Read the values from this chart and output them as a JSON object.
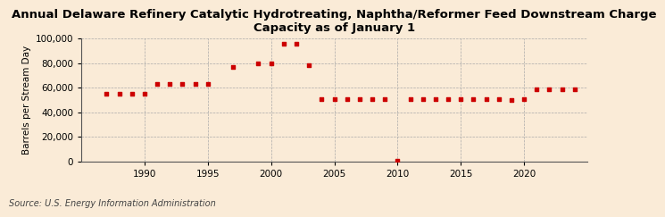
{
  "title": "Annual Delaware Refinery Catalytic Hydrotreating, Naphtha/Reformer Feed Downstream Charge\nCapacity as of January 1",
  "ylabel": "Barrels per Stream Day",
  "source": "Source: U.S. Energy Information Administration",
  "background_color": "#faebd7",
  "marker_color": "#cc0000",
  "years": [
    1987,
    1988,
    1989,
    1990,
    1991,
    1992,
    1993,
    1994,
    1995,
    1997,
    1999,
    2000,
    2001,
    2002,
    2003,
    2004,
    2005,
    2006,
    2007,
    2008,
    2009,
    2010,
    2011,
    2012,
    2013,
    2014,
    2015,
    2016,
    2017,
    2018,
    2019,
    2020,
    2021,
    2022,
    2023,
    2024
  ],
  "values": [
    55000,
    55000,
    55000,
    55000,
    63000,
    63000,
    63000,
    63000,
    63000,
    77000,
    80000,
    80000,
    96000,
    96000,
    78000,
    51000,
    51000,
    51000,
    51000,
    51000,
    51000,
    200,
    51000,
    51000,
    51000,
    51000,
    51000,
    51000,
    51000,
    51000,
    50000,
    51000,
    59000,
    59000,
    59000,
    59000
  ],
  "xlim": [
    1985,
    2025
  ],
  "ylim": [
    0,
    100000
  ],
  "yticks": [
    0,
    20000,
    40000,
    60000,
    80000,
    100000
  ],
  "xticks": [
    1990,
    1995,
    2000,
    2005,
    2010,
    2015,
    2020
  ],
  "title_fontsize": 9.5,
  "label_fontsize": 7.5,
  "tick_fontsize": 7.5,
  "source_fontsize": 7.0
}
